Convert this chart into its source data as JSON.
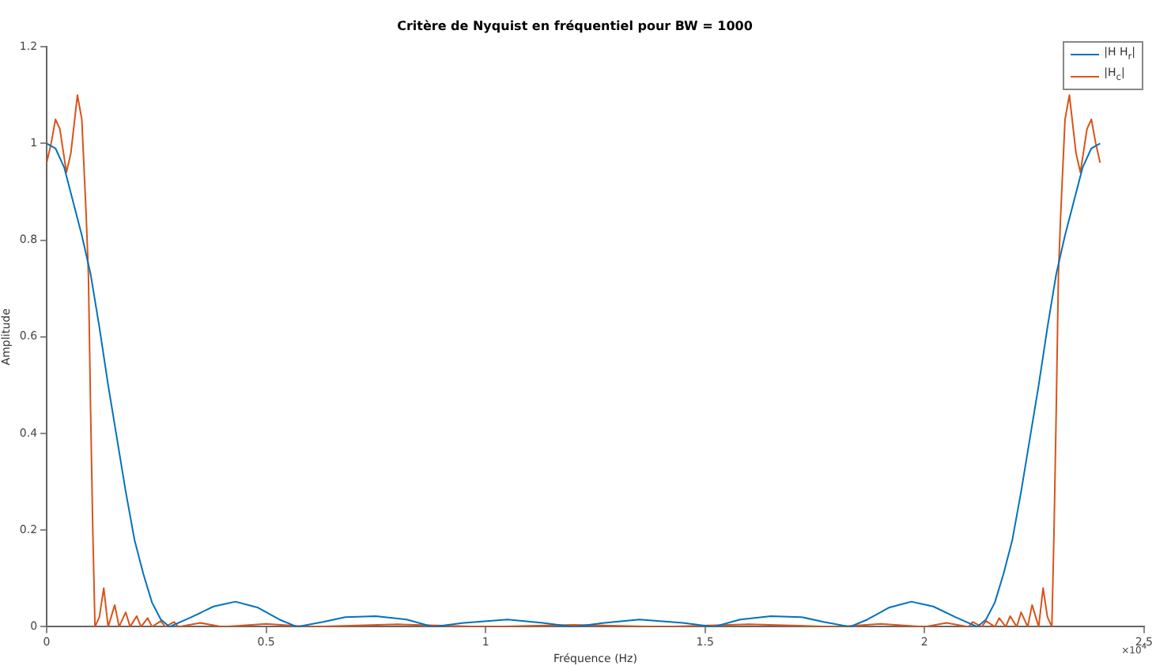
{
  "chart_data": {
    "type": "line",
    "title": "Critère de Nyquist en fréquentiel pour BW = 1000",
    "xlabel": "Fréquence (Hz)",
    "ylabel": "Amplitude",
    "annotations": [
      "×10$^{4}$"
    ],
    "xlim": [
      0,
      2.5
    ],
    "xticks": [
      0,
      0.5,
      1,
      1.5,
      2,
      2.5
    ],
    "ylim": [
      0,
      1.2
    ],
    "yticks": [
      0,
      0.2,
      0.4,
      0.6,
      0.8,
      1,
      1.2
    ],
    "grid": false,
    "legend": "top right",
    "marker": "none",
    "line_style": "solid",
    "series": [
      {
        "name": "|H H$_{r}$|",
        "color": "#0072bd",
        "x": [
          0,
          0.02,
          0.04,
          0.06,
          0.08,
          0.1,
          0.12,
          0.14,
          0.16,
          0.18,
          0.2,
          0.22,
          0.24,
          0.26,
          0.28,
          0.33,
          0.38,
          0.43,
          0.48,
          0.53,
          0.57,
          0.63,
          0.68,
          0.75,
          0.82,
          0.88,
          0.95,
          1.05,
          1.13,
          1.2,
          1.27,
          1.35,
          1.45,
          1.52,
          1.58,
          1.65,
          1.72,
          1.77,
          1.83,
          1.87,
          1.92,
          1.97,
          2.02,
          2.07,
          2.12,
          2.14,
          2.16,
          2.18,
          2.2,
          2.22,
          2.24,
          2.26,
          2.28,
          2.3,
          2.32,
          2.34,
          2.36,
          2.38,
          2.4
        ],
        "values": [
          1.0,
          0.99,
          0.95,
          0.88,
          0.81,
          0.73,
          0.62,
          0.5,
          0.39,
          0.28,
          0.18,
          0.11,
          0.05,
          0.015,
          0,
          0.02,
          0.042,
          0.052,
          0.04,
          0.015,
          0,
          0.01,
          0.02,
          0.022,
          0.015,
          0,
          0.008,
          0.015,
          0.008,
          0,
          0.008,
          0.015,
          0.008,
          0,
          0.015,
          0.022,
          0.02,
          0.01,
          0,
          0.015,
          0.04,
          0.052,
          0.042,
          0.02,
          0,
          0.015,
          0.05,
          0.11,
          0.18,
          0.28,
          0.39,
          0.5,
          0.62,
          0.73,
          0.81,
          0.88,
          0.95,
          0.99,
          1.0
        ]
      },
      {
        "name": "|H$_{c}$|",
        "color": "#d95319",
        "x": [
          0,
          0.01,
          0.02,
          0.03,
          0.045,
          0.055,
          0.07,
          0.08,
          0.09,
          0.095,
          0.1,
          0.105,
          0.11,
          0.12,
          0.13,
          0.14,
          0.155,
          0.165,
          0.18,
          0.19,
          0.205,
          0.215,
          0.23,
          0.24,
          0.26,
          0.27,
          0.29,
          0.3,
          0.35,
          0.4,
          0.5,
          0.6,
          0.8,
          1,
          1.2,
          1.4,
          1.6,
          1.8,
          1.9,
          2,
          2.05,
          2.1,
          2.11,
          2.13,
          2.14,
          2.16,
          2.17,
          2.185,
          2.195,
          2.21,
          2.22,
          2.235,
          2.245,
          2.26,
          2.27,
          2.28,
          2.29,
          2.295,
          2.3,
          2.305,
          2.31,
          2.32,
          2.33,
          2.345,
          2.355,
          2.37,
          2.38,
          2.39,
          2.4
        ],
        "values": [
          0.96,
          1.0,
          1.05,
          1.03,
          0.94,
          0.98,
          1.1,
          1.05,
          0.85,
          0.73,
          0.45,
          0.2,
          0,
          0.02,
          0.08,
          0,
          0.045,
          0,
          0.03,
          0,
          0.022,
          0,
          0.018,
          0,
          0.012,
          0,
          0.01,
          0,
          0.008,
          0,
          0.006,
          0,
          0.005,
          0,
          0.004,
          0,
          0.005,
          0,
          0.006,
          0,
          0.008,
          0,
          0.01,
          0,
          0.012,
          0,
          0.018,
          0,
          0.022,
          0,
          0.03,
          0,
          0.045,
          0,
          0.08,
          0.02,
          0,
          0.2,
          0.45,
          0.73,
          0.85,
          1.05,
          1.1,
          0.98,
          0.94,
          1.03,
          1.05,
          1.0,
          0.96
        ]
      }
    ]
  }
}
